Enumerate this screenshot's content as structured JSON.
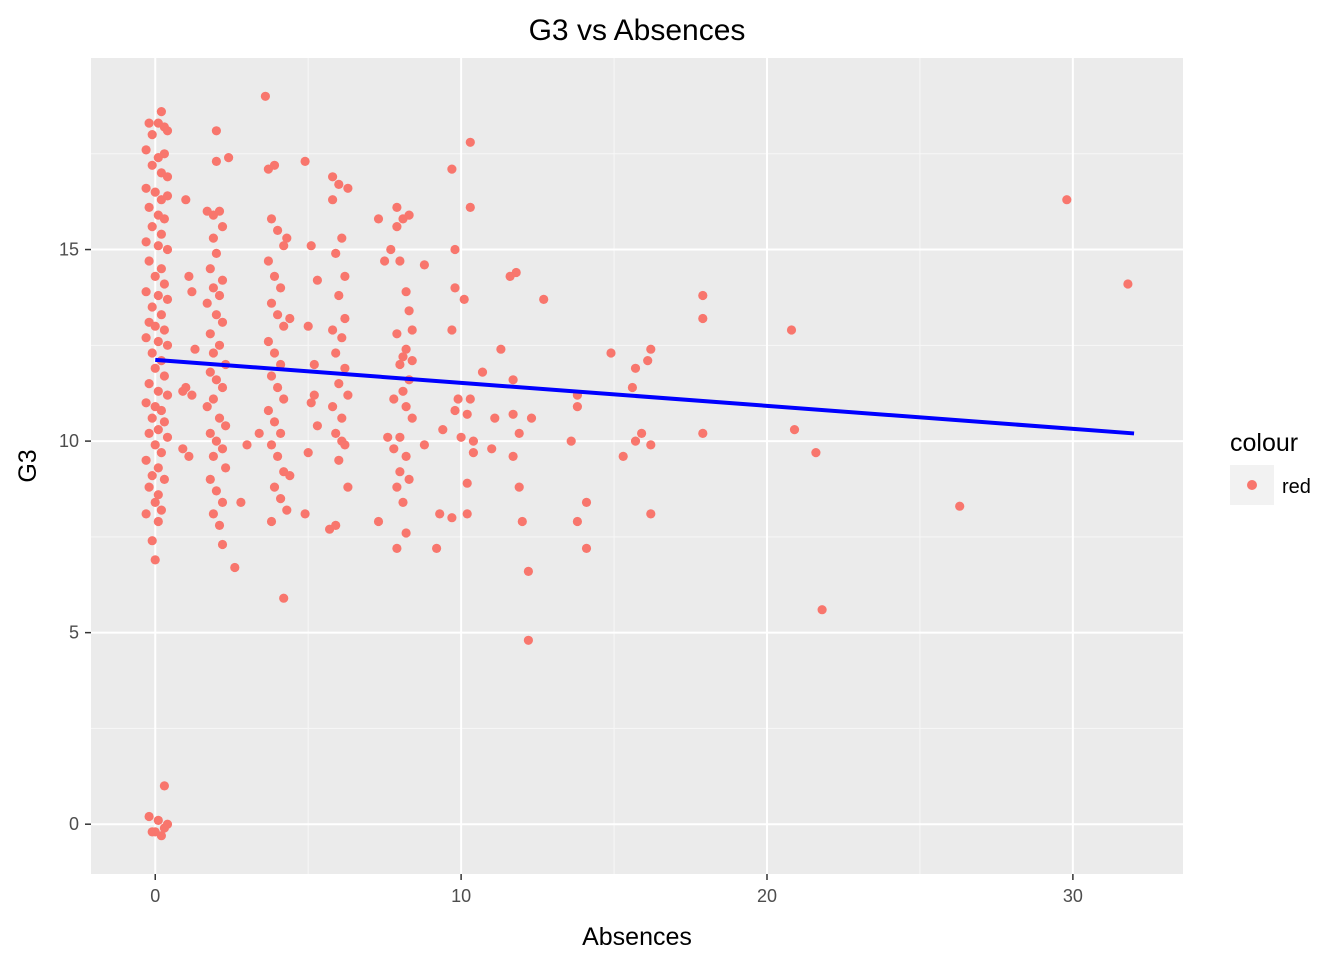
{
  "chart_data": {
    "type": "scatter",
    "title": "G3 vs Absences",
    "xlabel": "Absences",
    "ylabel": "G3",
    "xlim": [
      -2.1,
      33.6
    ],
    "ylim": [
      -1.3,
      20.0
    ],
    "x_ticks": [
      0,
      10,
      20,
      30
    ],
    "y_ticks": [
      0,
      5,
      10,
      15
    ],
    "grid": true,
    "point_color": "#F8766D",
    "panel_color": "#EBEBEB",
    "grid_color": "#FFFFFF",
    "legend": {
      "title": "colour",
      "position": "right",
      "entries": [
        {
          "label": "red",
          "color": "#F8766D"
        }
      ]
    },
    "trend_line": {
      "color": "#0000FF",
      "x": [
        0,
        32
      ],
      "y": [
        12.12,
        10.2
      ]
    },
    "points": [
      [
        -0.2,
        18.3
      ],
      [
        0.1,
        18.3
      ],
      [
        0.3,
        18.2
      ],
      [
        -0.1,
        18.0
      ],
      [
        0.4,
        18.1
      ],
      [
        0.2,
        18.6
      ],
      [
        -0.3,
        17.6
      ],
      [
        0.1,
        17.4
      ],
      [
        0.3,
        17.5
      ],
      [
        -0.1,
        17.2
      ],
      [
        0.2,
        17.0
      ],
      [
        0.4,
        16.9
      ],
      [
        -0.3,
        16.6
      ],
      [
        0.0,
        16.5
      ],
      [
        0.2,
        16.3
      ],
      [
        0.4,
        16.4
      ],
      [
        -0.2,
        16.1
      ],
      [
        0.1,
        15.9
      ],
      [
        0.3,
        15.8
      ],
      [
        -0.1,
        15.6
      ],
      [
        0.2,
        15.4
      ],
      [
        -0.3,
        15.2
      ],
      [
        0.1,
        15.1
      ],
      [
        0.4,
        15.0
      ],
      [
        -0.2,
        14.7
      ],
      [
        0.2,
        14.5
      ],
      [
        0.0,
        14.3
      ],
      [
        0.3,
        14.1
      ],
      [
        -0.3,
        13.9
      ],
      [
        0.1,
        13.8
      ],
      [
        0.4,
        13.7
      ],
      [
        -0.1,
        13.5
      ],
      [
        0.2,
        13.3
      ],
      [
        -0.2,
        13.1
      ],
      [
        0.0,
        13.0
      ],
      [
        0.3,
        12.9
      ],
      [
        -0.3,
        12.7
      ],
      [
        0.1,
        12.6
      ],
      [
        0.4,
        12.5
      ],
      [
        -0.1,
        12.3
      ],
      [
        0.2,
        12.1
      ],
      [
        0.0,
        11.9
      ],
      [
        0.3,
        11.7
      ],
      [
        -0.2,
        11.5
      ],
      [
        0.1,
        11.3
      ],
      [
        0.4,
        11.2
      ],
      [
        -0.3,
        11.0
      ],
      [
        0.0,
        10.9
      ],
      [
        0.2,
        10.8
      ],
      [
        -0.1,
        10.6
      ],
      [
        0.3,
        10.5
      ],
      [
        0.1,
        10.3
      ],
      [
        -0.2,
        10.2
      ],
      [
        0.4,
        10.1
      ],
      [
        0.0,
        9.9
      ],
      [
        0.2,
        9.7
      ],
      [
        -0.3,
        9.5
      ],
      [
        0.1,
        9.3
      ],
      [
        -0.1,
        9.1
      ],
      [
        0.3,
        9.0
      ],
      [
        -0.2,
        8.8
      ],
      [
        0.1,
        8.6
      ],
      [
        0.0,
        8.4
      ],
      [
        0.2,
        8.2
      ],
      [
        -0.3,
        8.1
      ],
      [
        0.1,
        7.9
      ],
      [
        -0.1,
        7.4
      ],
      [
        0.0,
        6.9
      ],
      [
        -0.2,
        0.2
      ],
      [
        0.1,
        0.1
      ],
      [
        0.3,
        -0.1
      ],
      [
        -0.1,
        -0.2
      ],
      [
        0.2,
        -0.3
      ],
      [
        0.4,
        0.0
      ],
      [
        0.0,
        -0.2
      ],
      [
        0.3,
        1.0
      ],
      [
        1.0,
        16.3
      ],
      [
        1.1,
        14.3
      ],
      [
        1.2,
        13.9
      ],
      [
        1.3,
        12.4
      ],
      [
        1.0,
        11.4
      ],
      [
        1.2,
        11.2
      ],
      [
        0.9,
        9.8
      ],
      [
        1.1,
        9.6
      ],
      [
        0.9,
        11.3
      ],
      [
        1.7,
        16.0
      ],
      [
        1.9,
        15.9
      ],
      [
        2.1,
        16.0
      ],
      [
        2.2,
        15.6
      ],
      [
        1.9,
        15.3
      ],
      [
        2.0,
        14.9
      ],
      [
        1.8,
        14.5
      ],
      [
        2.2,
        14.2
      ],
      [
        1.9,
        14.0
      ],
      [
        2.1,
        13.8
      ],
      [
        1.7,
        13.6
      ],
      [
        2.0,
        13.3
      ],
      [
        2.2,
        13.1
      ],
      [
        1.8,
        12.8
      ],
      [
        2.1,
        12.5
      ],
      [
        1.9,
        12.3
      ],
      [
        2.3,
        12.0
      ],
      [
        1.8,
        11.8
      ],
      [
        2.0,
        11.6
      ],
      [
        2.2,
        11.4
      ],
      [
        1.9,
        11.1
      ],
      [
        1.7,
        10.9
      ],
      [
        2.1,
        10.6
      ],
      [
        2.3,
        10.4
      ],
      [
        1.8,
        10.2
      ],
      [
        2.0,
        10.0
      ],
      [
        2.2,
        9.8
      ],
      [
        1.9,
        9.6
      ],
      [
        2.3,
        9.3
      ],
      [
        1.8,
        9.0
      ],
      [
        2.0,
        8.7
      ],
      [
        2.2,
        8.4
      ],
      [
        1.9,
        8.1
      ],
      [
        2.1,
        7.8
      ],
      [
        2.2,
        7.3
      ],
      [
        2.0,
        17.3
      ],
      [
        2.4,
        17.4
      ],
      [
        2.0,
        18.1
      ],
      [
        2.6,
        6.7
      ],
      [
        2.8,
        8.4
      ],
      [
        3.0,
        9.9
      ],
      [
        3.6,
        19.0
      ],
      [
        3.7,
        17.1
      ],
      [
        3.9,
        17.2
      ],
      [
        3.8,
        15.8
      ],
      [
        4.0,
        15.5
      ],
      [
        4.2,
        15.1
      ],
      [
        3.7,
        14.7
      ],
      [
        3.9,
        14.3
      ],
      [
        4.1,
        14.0
      ],
      [
        3.8,
        13.6
      ],
      [
        4.0,
        13.3
      ],
      [
        4.2,
        13.0
      ],
      [
        3.7,
        12.6
      ],
      [
        3.9,
        12.3
      ],
      [
        4.1,
        12.0
      ],
      [
        3.8,
        11.7
      ],
      [
        4.0,
        11.4
      ],
      [
        4.2,
        11.1
      ],
      [
        3.7,
        10.8
      ],
      [
        3.9,
        10.5
      ],
      [
        4.1,
        10.2
      ],
      [
        3.8,
        9.9
      ],
      [
        4.0,
        9.6
      ],
      [
        4.2,
        9.2
      ],
      [
        3.9,
        8.8
      ],
      [
        4.1,
        8.5
      ],
      [
        4.3,
        8.2
      ],
      [
        3.8,
        7.9
      ],
      [
        4.2,
        5.9
      ],
      [
        4.4,
        13.2
      ],
      [
        4.3,
        15.3
      ],
      [
        4.4,
        9.1
      ],
      [
        3.4,
        10.2
      ],
      [
        4.9,
        17.3
      ],
      [
        5.1,
        15.1
      ],
      [
        5.3,
        14.2
      ],
      [
        5.0,
        13.0
      ],
      [
        5.2,
        12.0
      ],
      [
        5.1,
        11.0
      ],
      [
        5.3,
        10.4
      ],
      [
        5.0,
        9.7
      ],
      [
        4.9,
        8.1
      ],
      [
        5.2,
        11.2
      ],
      [
        5.8,
        16.9
      ],
      [
        6.0,
        16.7
      ],
      [
        6.3,
        16.6
      ],
      [
        5.8,
        16.3
      ],
      [
        6.1,
        15.3
      ],
      [
        5.9,
        14.9
      ],
      [
        6.2,
        14.3
      ],
      [
        6.0,
        13.8
      ],
      [
        6.2,
        13.2
      ],
      [
        5.8,
        12.9
      ],
      [
        6.1,
        12.7
      ],
      [
        5.9,
        12.3
      ],
      [
        6.2,
        11.9
      ],
      [
        6.0,
        11.5
      ],
      [
        6.3,
        11.2
      ],
      [
        5.8,
        10.9
      ],
      [
        6.1,
        10.6
      ],
      [
        5.9,
        10.2
      ],
      [
        6.2,
        9.9
      ],
      [
        6.0,
        9.5
      ],
      [
        6.3,
        8.8
      ],
      [
        5.7,
        7.7
      ],
      [
        5.9,
        7.8
      ],
      [
        6.1,
        10.0
      ],
      [
        7.3,
        15.8
      ],
      [
        7.7,
        15.0
      ],
      [
        7.5,
        14.7
      ],
      [
        7.9,
        15.6
      ],
      [
        8.1,
        15.8
      ],
      [
        7.9,
        16.1
      ],
      [
        8.3,
        15.9
      ],
      [
        8.0,
        14.7
      ],
      [
        8.2,
        13.9
      ],
      [
        8.3,
        13.4
      ],
      [
        7.9,
        12.8
      ],
      [
        8.1,
        12.2
      ],
      [
        8.4,
        12.9
      ],
      [
        8.2,
        12.4
      ],
      [
        8.0,
        12.0
      ],
      [
        8.3,
        11.6
      ],
      [
        8.1,
        11.3
      ],
      [
        7.8,
        11.1
      ],
      [
        8.2,
        10.9
      ],
      [
        8.4,
        10.6
      ],
      [
        8.0,
        10.1
      ],
      [
        7.8,
        9.8
      ],
      [
        8.2,
        9.6
      ],
      [
        8.0,
        9.2
      ],
      [
        8.3,
        9.0
      ],
      [
        7.9,
        8.8
      ],
      [
        8.1,
        8.4
      ],
      [
        8.2,
        7.6
      ],
      [
        7.9,
        7.2
      ],
      [
        7.3,
        7.9
      ],
      [
        7.6,
        10.1
      ],
      [
        8.8,
        9.9
      ],
      [
        8.8,
        14.6
      ],
      [
        8.4,
        12.1
      ],
      [
        9.2,
        7.2
      ],
      [
        9.3,
        8.1
      ],
      [
        9.4,
        10.3
      ],
      [
        9.7,
        17.1
      ],
      [
        9.8,
        15.0
      ],
      [
        9.8,
        14.0
      ],
      [
        9.7,
        12.9
      ],
      [
        9.9,
        11.1
      ],
      [
        9.8,
        10.8
      ],
      [
        10.0,
        10.1
      ],
      [
        9.7,
        8.0
      ],
      [
        10.1,
        13.7
      ],
      [
        10.3,
        16.1
      ],
      [
        10.3,
        17.8
      ],
      [
        10.3,
        11.1
      ],
      [
        10.2,
        10.7
      ],
      [
        10.4,
        10.0
      ],
      [
        10.4,
        9.7
      ],
      [
        10.2,
        8.9
      ],
      [
        10.2,
        8.1
      ],
      [
        10.7,
        11.8
      ],
      [
        11.0,
        9.8
      ],
      [
        11.1,
        10.6
      ],
      [
        11.3,
        12.4
      ],
      [
        11.6,
        14.3
      ],
      [
        11.8,
        14.4
      ],
      [
        11.7,
        11.6
      ],
      [
        11.7,
        10.7
      ],
      [
        11.9,
        10.2
      ],
      [
        11.9,
        8.8
      ],
      [
        12.0,
        7.9
      ],
      [
        11.7,
        9.6
      ],
      [
        12.2,
        6.6
      ],
      [
        12.2,
        4.8
      ],
      [
        12.3,
        10.6
      ],
      [
        12.7,
        13.7
      ],
      [
        13.6,
        10.0
      ],
      [
        13.8,
        11.2
      ],
      [
        13.8,
        10.9
      ],
      [
        13.8,
        7.9
      ],
      [
        14.1,
        8.4
      ],
      [
        14.1,
        7.2
      ],
      [
        14.9,
        12.3
      ],
      [
        15.3,
        9.6
      ],
      [
        15.6,
        11.4
      ],
      [
        15.7,
        11.9
      ],
      [
        15.7,
        10.0
      ],
      [
        15.9,
        10.2
      ],
      [
        16.1,
        12.1
      ],
      [
        16.2,
        12.4
      ],
      [
        16.2,
        9.9
      ],
      [
        16.2,
        8.1
      ],
      [
        17.9,
        13.8
      ],
      [
        17.9,
        13.2
      ],
      [
        17.9,
        10.2
      ],
      [
        20.8,
        12.9
      ],
      [
        20.9,
        10.3
      ],
      [
        21.6,
        9.7
      ],
      [
        21.8,
        5.6
      ],
      [
        26.3,
        8.3
      ],
      [
        29.8,
        16.3
      ],
      [
        31.8,
        14.1
      ]
    ]
  }
}
